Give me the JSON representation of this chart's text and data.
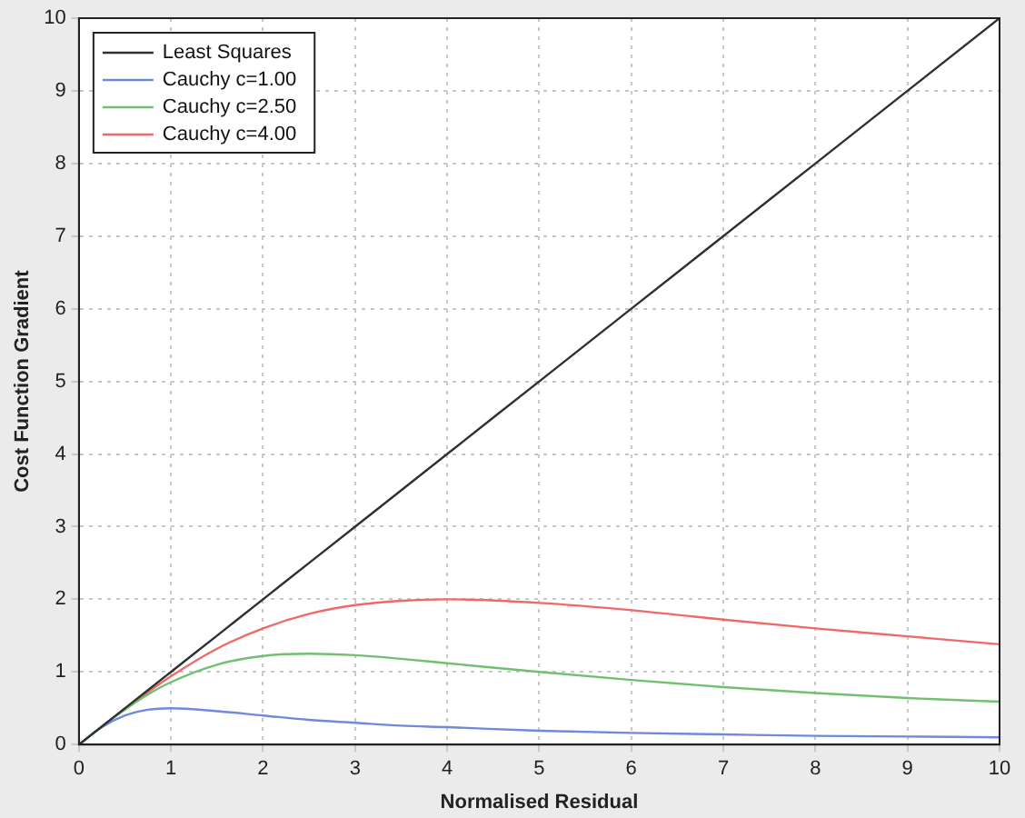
{
  "chart_data": {
    "type": "line",
    "xlabel": "Normalised Residual",
    "ylabel": "Cost Function Gradient",
    "x": [
      0,
      0.25,
      0.5,
      0.75,
      1,
      1.5,
      2,
      2.5,
      3,
      3.5,
      4,
      5,
      6,
      7,
      8,
      9,
      10
    ],
    "series": [
      {
        "name": "Least Squares",
        "color": "#303030",
        "values": [
          0,
          0.25,
          0.5,
          0.75,
          1,
          1.5,
          2,
          2.5,
          3,
          3.5,
          4,
          5,
          6,
          7,
          8,
          9,
          10
        ]
      },
      {
        "name": "Cauchy c=1.00",
        "color": "#7088dd",
        "values": [
          0,
          0.24,
          0.4,
          0.48,
          0.5,
          0.46,
          0.4,
          0.34,
          0.3,
          0.26,
          0.24,
          0.19,
          0.16,
          0.14,
          0.12,
          0.11,
          0.1
        ]
      },
      {
        "name": "Cauchy c=2.50",
        "color": "#70c070",
        "values": [
          0,
          0.25,
          0.48,
          0.69,
          0.86,
          1.1,
          1.22,
          1.25,
          1.23,
          1.18,
          1.12,
          1,
          0.89,
          0.79,
          0.71,
          0.64,
          0.59
        ]
      },
      {
        "name": "Cauchy c=4.00",
        "color": "#f06868",
        "values": [
          null,
          null,
          0.49,
          0.72,
          0.94,
          1.32,
          1.6,
          1.8,
          1.92,
          1.98,
          2,
          1.95,
          1.85,
          1.72,
          1.6,
          1.49,
          1.38
        ]
      }
    ],
    "xlim": [
      0,
      10
    ],
    "ylim": [
      0,
      10
    ],
    "xticks": [
      0,
      1,
      2,
      3,
      4,
      5,
      6,
      7,
      8,
      9,
      10
    ],
    "yticks": [
      0,
      1,
      2,
      3,
      4,
      5,
      6,
      7,
      8,
      9,
      10
    ],
    "grid": true,
    "legend": "top left",
    "marker": "none",
    "line_style": "solid"
  }
}
